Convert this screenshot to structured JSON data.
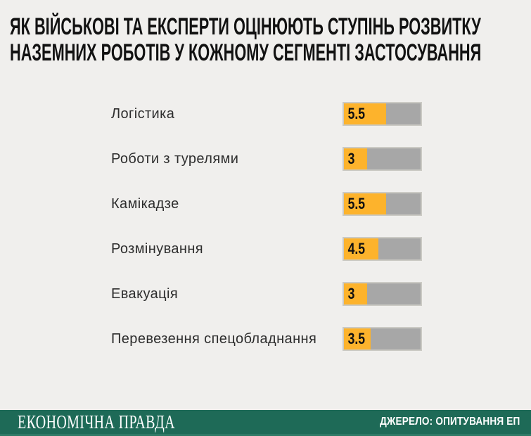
{
  "title": {
    "line1": "ЯК ВІЙСЬКОВІ ТА ЕКСПЕРТИ ОЦІНЮЮТЬ СТУПІНЬ РОЗВИТКУ",
    "line2": "НАЗЕМНИХ РОБОТІВ У КОЖНОМУ СЕГМЕНТІ ЗАСТОСУВАННЯ"
  },
  "chart_data": {
    "type": "bar",
    "orientation": "horizontal",
    "title": "ЯК ВІЙСЬКОВІ ТА ЕКСПЕРТИ ОЦІНЮЮТЬ СТУПІНЬ РОЗВИТКУ НАЗЕМНИХ РОБОТІВ У КОЖНОМУ СЕГМЕНТІ ЗАСТОСУВАННЯ",
    "categories": [
      "Логістика",
      "Роботи з турелями",
      "Камікадзе",
      "Розмінування",
      "Евакуація",
      "Перевезення спецобладнання"
    ],
    "values": [
      5.5,
      3,
      5.5,
      4.5,
      3,
      3.5
    ],
    "value_labels": [
      "5.5",
      "3",
      "5.5",
      "4.5",
      "3",
      "3.5"
    ],
    "xlim": [
      0,
      10
    ],
    "grid": false,
    "legend": false,
    "value_label_position": "inside-left"
  },
  "theme": {
    "bg": "#F0EFED",
    "title": "#121212",
    "label": "#2D2D2D",
    "fill": "#FDB32C",
    "track": "#A7A7A7",
    "track_border": "#CBCAC4",
    "value": "#121212",
    "footer_bg": "#1E6A57",
    "footer_strip": "#2F7A66"
  },
  "footer": {
    "brand": "ЕКОНОМІЧНА ПРАВДА",
    "source": "ДЖЕРЕЛО: ОПИТУВАННЯ ЕП"
  }
}
